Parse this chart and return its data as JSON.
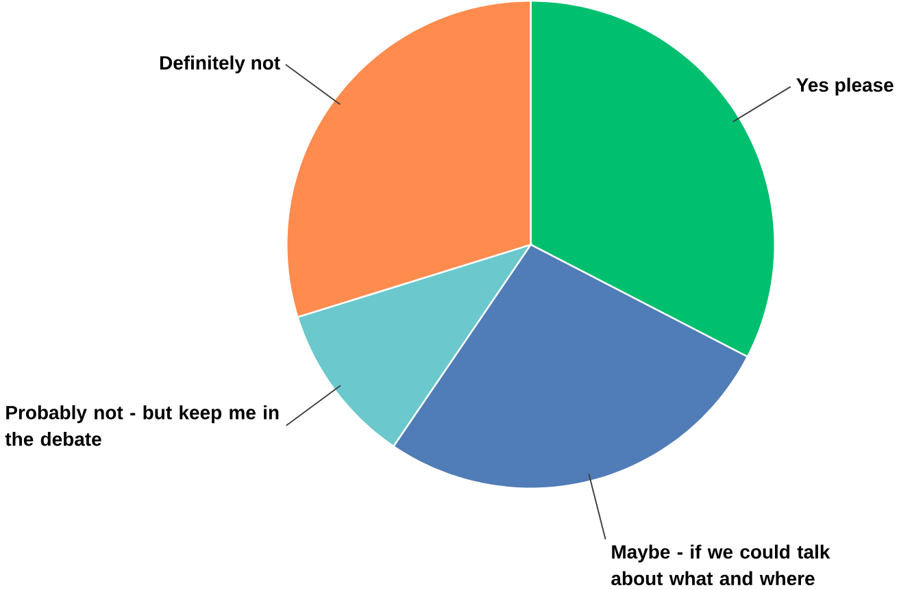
{
  "chart_data": {
    "type": "pie",
    "categories": [
      "Yes please",
      "Maybe - if we could talk about what and where",
      "Probably not - but keep me in the debate",
      "Definitely not"
    ],
    "values": [
      32.6,
      26.9,
      10.7,
      29.8
    ],
    "colors": [
      "#00bf6f",
      "#507cb7",
      "#6bc8cd",
      "#ff8b4f"
    ]
  }
}
